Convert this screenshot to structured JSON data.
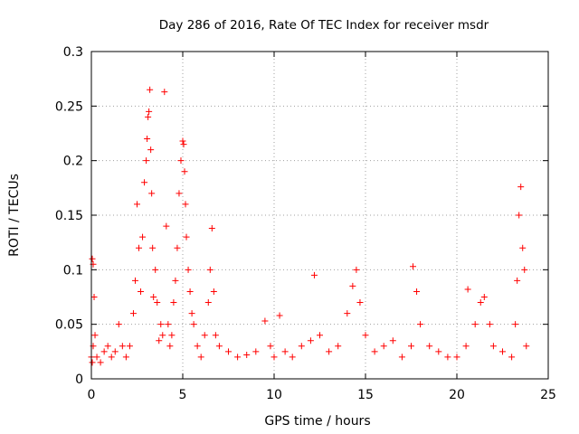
{
  "chart_data": {
    "type": "scatter",
    "title": "Day 286 of 2016, Rate Of TEC Index for receiver msdr",
    "xlabel": "GPS time / hours",
    "ylabel": "ROTI / TECUs",
    "xlim": [
      0,
      25
    ],
    "ylim": [
      0,
      0.3
    ],
    "x_ticks": [
      0,
      5,
      10,
      15,
      20,
      25
    ],
    "x_tick_labels": [
      "0",
      "5",
      "10",
      "15",
      "20",
      "25"
    ],
    "y_ticks": [
      0,
      0.05,
      0.1,
      0.15,
      0.2,
      0.25,
      0.3
    ],
    "y_tick_labels": [
      "0",
      "0.05",
      "0.1",
      "0.15",
      "0.2",
      "0.25",
      "0.3"
    ],
    "grid": true,
    "marker": "+",
    "series": [
      {
        "name": "ROTI",
        "color": "#ff0000",
        "x": [
          0.0,
          0.05,
          0.1,
          0.15,
          0.2,
          0.05,
          0.1,
          0.3,
          0.5,
          0.7,
          0.9,
          1.1,
          1.3,
          1.5,
          1.7,
          1.9,
          2.1,
          2.3,
          2.4,
          2.5,
          2.6,
          2.7,
          2.8,
          2.9,
          3.0,
          3.05,
          3.1,
          3.15,
          3.2,
          3.25,
          3.3,
          3.35,
          3.4,
          3.5,
          3.6,
          3.7,
          3.8,
          3.9,
          4.0,
          4.1,
          4.2,
          4.3,
          4.4,
          4.5,
          4.6,
          4.7,
          4.8,
          4.9,
          5.0,
          5.05,
          5.1,
          5.15,
          5.2,
          5.3,
          5.4,
          5.5,
          5.6,
          5.8,
          6.0,
          6.2,
          6.4,
          6.5,
          6.6,
          6.7,
          6.8,
          7.0,
          7.5,
          8.0,
          8.5,
          9.0,
          9.5,
          9.8,
          10.0,
          10.3,
          10.6,
          11.0,
          11.5,
          12.0,
          12.2,
          12.5,
          13.0,
          13.5,
          14.0,
          14.3,
          14.5,
          14.7,
          15.0,
          15.5,
          16.0,
          16.5,
          17.0,
          17.5,
          17.6,
          17.8,
          18.0,
          18.5,
          19.0,
          19.5,
          20.0,
          20.5,
          20.6,
          21.0,
          21.3,
          21.5,
          21.8,
          22.0,
          22.5,
          23.0,
          23.2,
          23.3,
          23.4,
          23.5,
          23.6,
          23.7,
          23.8
        ],
        "y": [
          0.02,
          0.11,
          0.105,
          0.075,
          0.04,
          0.015,
          0.03,
          0.02,
          0.015,
          0.025,
          0.03,
          0.02,
          0.025,
          0.05,
          0.03,
          0.02,
          0.03,
          0.06,
          0.09,
          0.16,
          0.12,
          0.08,
          0.13,
          0.18,
          0.2,
          0.22,
          0.24,
          0.245,
          0.265,
          0.21,
          0.17,
          0.12,
          0.075,
          0.1,
          0.07,
          0.035,
          0.05,
          0.04,
          0.263,
          0.14,
          0.05,
          0.03,
          0.04,
          0.07,
          0.09,
          0.12,
          0.17,
          0.2,
          0.218,
          0.215,
          0.19,
          0.16,
          0.13,
          0.1,
          0.08,
          0.06,
          0.05,
          0.03,
          0.02,
          0.04,
          0.07,
          0.1,
          0.138,
          0.08,
          0.04,
          0.03,
          0.025,
          0.02,
          0.022,
          0.025,
          0.053,
          0.03,
          0.02,
          0.058,
          0.025,
          0.02,
          0.03,
          0.035,
          0.095,
          0.04,
          0.025,
          0.03,
          0.06,
          0.085,
          0.1,
          0.07,
          0.04,
          0.025,
          0.03,
          0.035,
          0.02,
          0.03,
          0.103,
          0.08,
          0.05,
          0.03,
          0.025,
          0.02,
          0.02,
          0.03,
          0.082,
          0.05,
          0.07,
          0.075,
          0.05,
          0.03,
          0.025,
          0.02,
          0.05,
          0.09,
          0.15,
          0.176,
          0.12,
          0.1,
          0.03
        ]
      }
    ]
  }
}
